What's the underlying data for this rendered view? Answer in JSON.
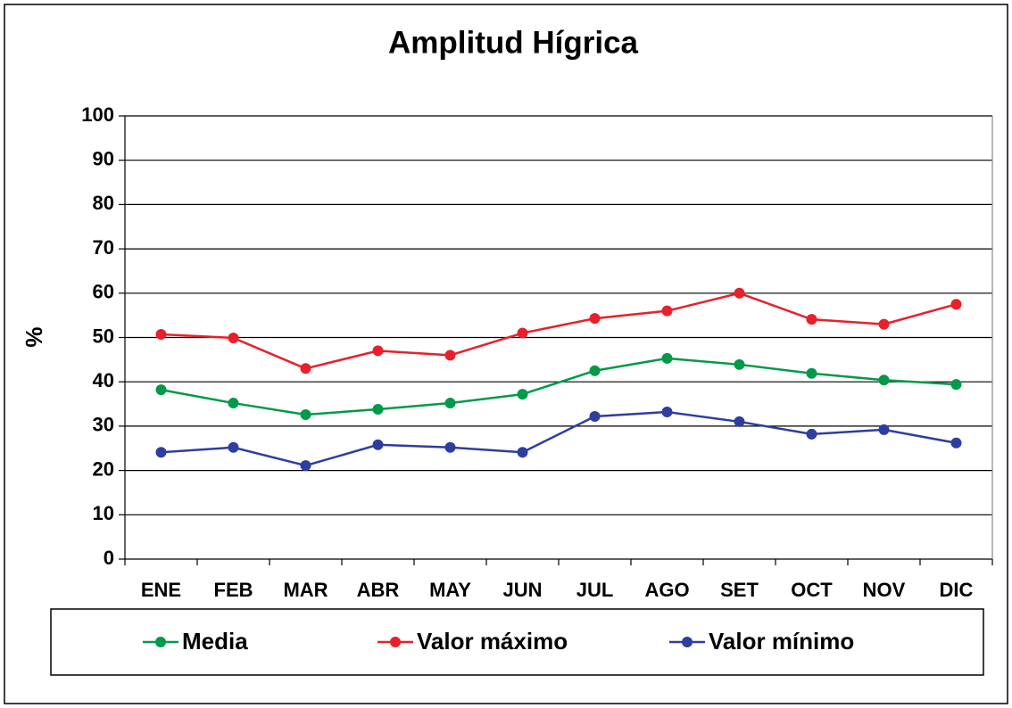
{
  "chart_data": {
    "type": "line",
    "title": "Amplitud Hígrica",
    "y_label": "%",
    "categories": [
      "ENE",
      "FEB",
      "MAR",
      "ABR",
      "MAY",
      "JUN",
      "JUL",
      "AGO",
      "SET",
      "OCT",
      "NOV",
      "DIC"
    ],
    "series": [
      {
        "name": "Media",
        "color": "#009a4a",
        "values": [
          38.2,
          35.2,
          32.6,
          33.8,
          35.2,
          37.2,
          42.5,
          45.3,
          43.9,
          41.9,
          40.4,
          39.4
        ]
      },
      {
        "name": "Valor máximo",
        "color": "#e8202a",
        "values": [
          50.7,
          49.9,
          43,
          47,
          46,
          51,
          54.3,
          56,
          60,
          54.1,
          53,
          57.5
        ]
      },
      {
        "name": "Valor mínimo",
        "color": "#2e3da0",
        "values": [
          24.1,
          25.2,
          21.1,
          25.8,
          25.2,
          24.1,
          32.2,
          33.2,
          31,
          28.2,
          29.2,
          26.2
        ]
      }
    ],
    "ylim": [
      0,
      100
    ],
    "yticks": [
      0,
      10,
      20,
      30,
      40,
      50,
      60,
      70,
      80,
      90,
      100
    ],
    "grid": true,
    "legend": "bottom"
  }
}
